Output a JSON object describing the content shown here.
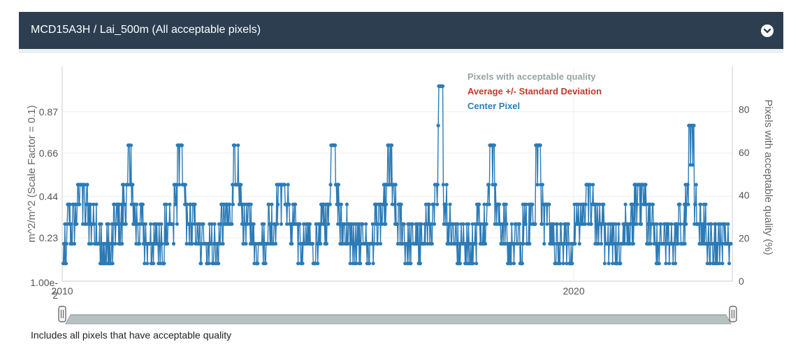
{
  "header": {
    "title": "MCD15A3H / Lai_500m (All acceptable pixels)",
    "collapse_icon": "chevron-down-circle-icon"
  },
  "caption": "Includes all pixels that have acceptable quality",
  "colors": {
    "header_bg": "#2c3e50",
    "series_center": "#2c7bb6",
    "legend_quality": "#95a5a6",
    "legend_avg": "#c0392b",
    "legend_center": "#2980b9",
    "navigator_fill": "#b7c1c1"
  },
  "chart_data": {
    "type": "line",
    "ylabel": "m^2/m^2 (Scale Factor = 0.1)",
    "y2label": "Pixels with acceptable quality (%)",
    "ylim": [
      0.01,
      1.1
    ],
    "y_ticks": [
      0.23,
      0.44,
      0.66,
      0.87
    ],
    "y_tick_labels": [
      "0.23",
      "0.44",
      "0.66",
      "0.87"
    ],
    "y_bottom_label": "1.00e-2",
    "y2lim": [
      0,
      100
    ],
    "y2_ticks": [
      0,
      20,
      40,
      60,
      80
    ],
    "x_tick_labels": [
      "2010",
      "2020"
    ],
    "x_ticks": [
      2010.0,
      2020.0
    ],
    "xlim": [
      2010.0,
      2023.1
    ],
    "legend": [
      {
        "label": "Pixels with acceptable quality",
        "color": "#95a5a6"
      },
      {
        "label": "Average +/- Standard Deviation",
        "color": "#c0392b"
      },
      {
        "label": "Center Pixel",
        "color": "#2980b9"
      }
    ],
    "legend_position": "top-right",
    "grid": true,
    "series": [
      {
        "name": "Center Pixel",
        "seasonal_peaks": [
          {
            "year": 2010.4,
            "peak": 0.5
          },
          {
            "year": 2011.3,
            "peak": 0.7
          },
          {
            "year": 2012.3,
            "peak": 0.7
          },
          {
            "year": 2013.4,
            "peak": 0.7
          },
          {
            "year": 2014.3,
            "peak": 0.5
          },
          {
            "year": 2015.3,
            "peak": 0.7
          },
          {
            "year": 2016.4,
            "peak": 0.7
          },
          {
            "year": 2017.4,
            "peak": 1.0
          },
          {
            "year": 2018.4,
            "peak": 0.7
          },
          {
            "year": 2019.3,
            "peak": 0.7
          },
          {
            "year": 2020.3,
            "peak": 0.5
          },
          {
            "year": 2021.3,
            "peak": 0.5
          },
          {
            "year": 2022.3,
            "peak": 0.8
          }
        ],
        "baseline": 0.1
      }
    ]
  }
}
